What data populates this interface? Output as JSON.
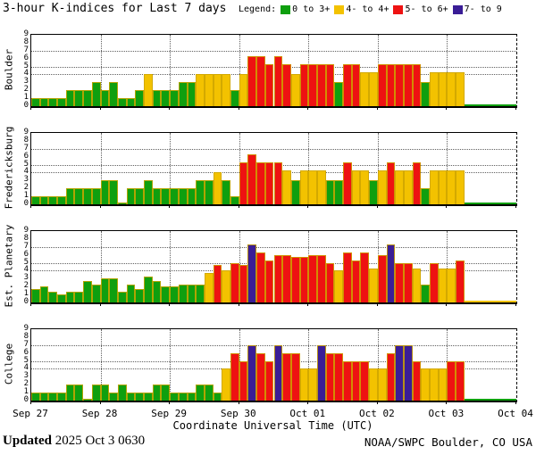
{
  "title": "3-hour K-indices for Last 7 days",
  "legend": {
    "label": "Legend:",
    "items": [
      {
        "label": "0 to 3+",
        "color": "#0f9f0f"
      },
      {
        "label": "4- to 4+",
        "color": "#f3c200"
      },
      {
        "label": "5- to 6+",
        "color": "#ee1212"
      },
      {
        "label": "7- to 9",
        "color": "#3a1d96"
      }
    ]
  },
  "x_axis": {
    "day_labels": [
      "Sep 27",
      "Sep 28",
      "Sep 29",
      "Sep 30",
      "Oct 01",
      "Oct 02",
      "Oct 03",
      "Oct 04"
    ],
    "title": "Coordinate Universal Time (UTC)"
  },
  "y_axis": {
    "min": 0,
    "max": 9,
    "tick_step": 1,
    "dotted_gridlines_at": [
      4,
      5,
      7
    ]
  },
  "footer": {
    "updated_label": "Updated",
    "updated_value": " 2025 Oct  3 0630",
    "credit": "NOAA/SWPC Boulder, CO USA"
  },
  "colors": {
    "green": "#0f9f0f",
    "yellow": "#f3c200",
    "red": "#ee1212",
    "purple": "#3a1d96",
    "threshold_yellow": 3.67,
    "threshold_red": 4.67,
    "threshold_purple": 6.67
  },
  "chart_data": {
    "type": "bar",
    "bars_per_day": 8,
    "days": 7,
    "hours_per_bar": 3,
    "ylim": [
      0,
      9
    ],
    "grid": "dotted at K=4,5,7 and at day boundaries",
    "legend_position": "top-right",
    "stations": [
      {
        "name": "Boulder",
        "nodata_color": "#0f9f0f",
        "values": [
          1,
          1,
          1,
          1,
          2,
          2,
          2,
          3,
          2,
          3,
          1,
          1,
          2,
          4,
          2,
          2,
          2,
          3,
          3,
          4,
          4,
          4,
          4,
          2,
          4,
          6.3,
          6.3,
          5.3,
          6.3,
          5.3,
          4,
          5.3,
          5.3,
          5.3,
          5.3,
          3,
          5.3,
          5.3,
          4.3,
          4.3,
          5.3,
          5.3,
          5.3,
          5.3,
          5.3,
          3,
          4.3,
          4.3,
          4.3,
          4.3
        ]
      },
      {
        "name": "Fredericksburg",
        "nodata_color": "#0f9f0f",
        "values": [
          1,
          1,
          1,
          1,
          2,
          2,
          2,
          2,
          3,
          3,
          0,
          2,
          2,
          3,
          2,
          2,
          2,
          2,
          2,
          3,
          3,
          4,
          3,
          1,
          5.3,
          6.3,
          5.3,
          5.3,
          5.3,
          4.3,
          3,
          4.3,
          4.3,
          4.3,
          3,
          3,
          5.3,
          4.3,
          4.3,
          3,
          4.3,
          5.3,
          4.3,
          4.3,
          5.3,
          2,
          4.3,
          4.3,
          4.3,
          4.3
        ]
      },
      {
        "name": "Est. Planetary",
        "nodata_color": "#f3c200",
        "values": [
          1.7,
          2,
          1.3,
          1,
          1.3,
          1.3,
          2.7,
          2.3,
          3,
          3,
          1.3,
          2.3,
          1.7,
          3.3,
          2.7,
          2,
          2,
          2.3,
          2.3,
          2.3,
          3.7,
          4.7,
          4,
          5,
          4.7,
          7.3,
          6.3,
          5.3,
          6,
          6,
          5.7,
          5.7,
          6,
          6,
          5,
          4,
          6.3,
          5.3,
          6.3,
          4.3,
          6,
          7.3,
          5,
          5,
          4.3,
          2.3,
          5,
          4.3,
          4.3,
          5.3
        ]
      },
      {
        "name": "College",
        "nodata_color": "#0f9f0f",
        "values": [
          1,
          1,
          1,
          1,
          2,
          2,
          0,
          2,
          2,
          1,
          2,
          1,
          1,
          1,
          2,
          2,
          1,
          1,
          1,
          2,
          2,
          1,
          4,
          6,
          5,
          7,
          6,
          5,
          7,
          6,
          6,
          4,
          4,
          7,
          6,
          6,
          5,
          5,
          5,
          4,
          4,
          6,
          7,
          7,
          5,
          4,
          4,
          4,
          5,
          5
        ]
      }
    ]
  }
}
